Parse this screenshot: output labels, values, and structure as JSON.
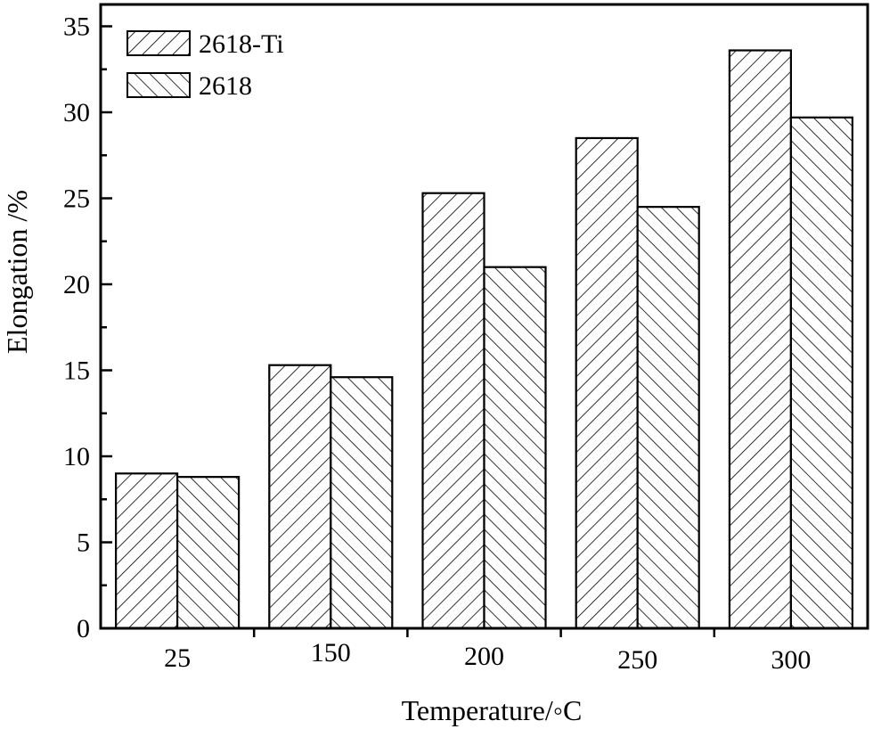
{
  "chart_data": {
    "type": "bar",
    "title": "",
    "xlabel": "Temperature/◦C",
    "ylabel": "Elongation /%",
    "categories": [
      "25",
      "150",
      "200",
      "250",
      "300"
    ],
    "series": [
      {
        "name": "2618-Ti",
        "pattern": "forward-hatch",
        "values": [
          9.0,
          15.3,
          25.3,
          28.5,
          33.6
        ]
      },
      {
        "name": "2618",
        "pattern": "back-hatch",
        "values": [
          8.8,
          14.6,
          21.0,
          24.5,
          29.7
        ]
      }
    ],
    "ylim": [
      0,
      36
    ],
    "yticks": [
      0,
      5,
      10,
      15,
      20,
      25,
      30,
      35
    ],
    "ytick_labels": [
      "0",
      "5",
      "10",
      "15",
      "20",
      "25",
      "30",
      "35"
    ],
    "grid": false,
    "legend_position": "top-left",
    "colors": {
      "fill": "#ffffff",
      "stroke": "#000000",
      "hatch": "#000000"
    }
  }
}
